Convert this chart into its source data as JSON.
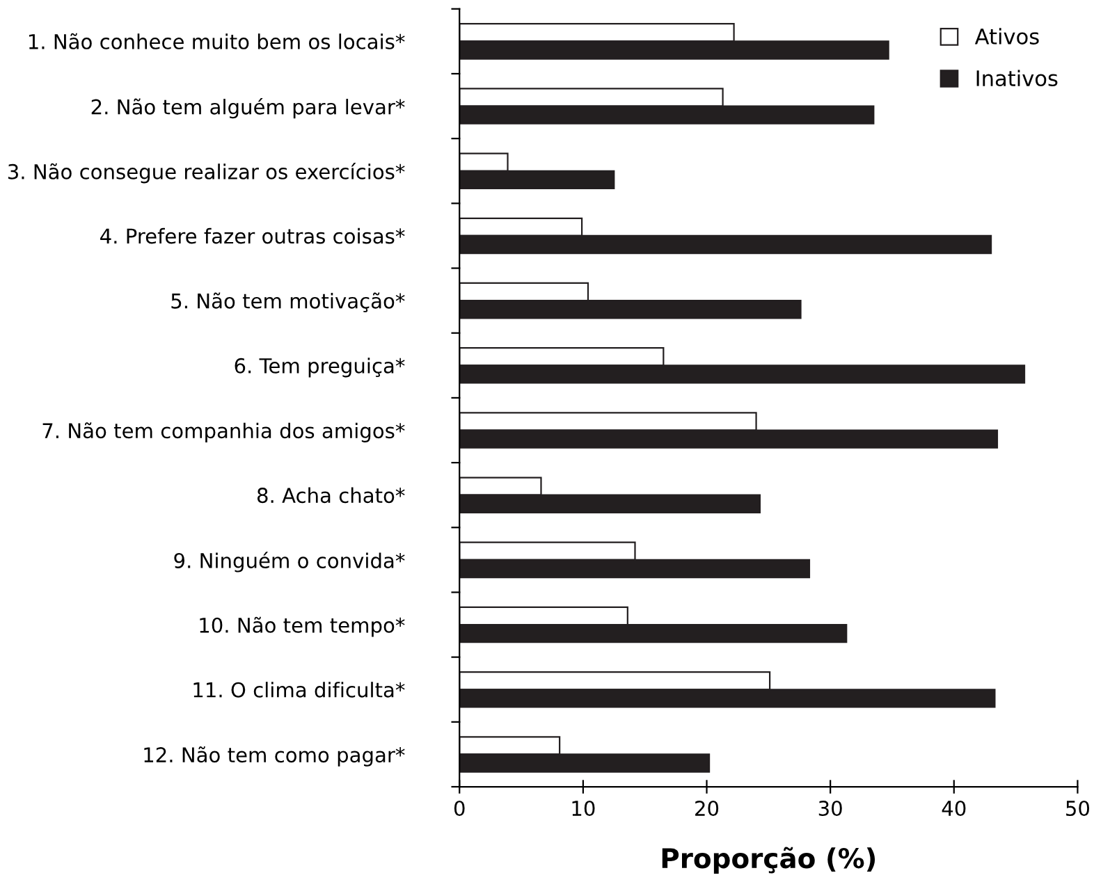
{
  "chart_data": {
    "type": "bar",
    "orientation": "horizontal",
    "xlabel": "Proporção (%)",
    "categories": [
      "1. Não conhece muito bem os locais*",
      "2. Não tem alguém para levar*",
      "3. Não consegue realizar os exercícios*",
      "4. Prefere fazer outras coisas*",
      "5. Não tem motivação*",
      "6. Tem preguiça*",
      "7. Não tem companhia dos amigos*",
      "8. Acha chato*",
      "9. Ninguém o convida*",
      "10. Não tem tempo*",
      "11. O clima dificulta*",
      "12. Não tem como pagar*"
    ],
    "series": [
      {
        "name": "Ativos",
        "color": "#ffffff",
        "values": [
          22.2,
          21.3,
          3.9,
          9.9,
          10.4,
          16.5,
          24.0,
          6.6,
          14.2,
          13.6,
          25.1,
          8.1
        ]
      },
      {
        "name": "Inativos",
        "color": "#231f20",
        "values": [
          34.7,
          33.5,
          12.5,
          43.0,
          27.6,
          45.7,
          43.5,
          24.3,
          28.3,
          31.3,
          43.3,
          20.2
        ]
      }
    ],
    "xlim": [
      0,
      50
    ],
    "xticks": [
      0,
      10,
      20,
      30,
      40,
      50
    ],
    "grid": false,
    "legend": "top right"
  }
}
